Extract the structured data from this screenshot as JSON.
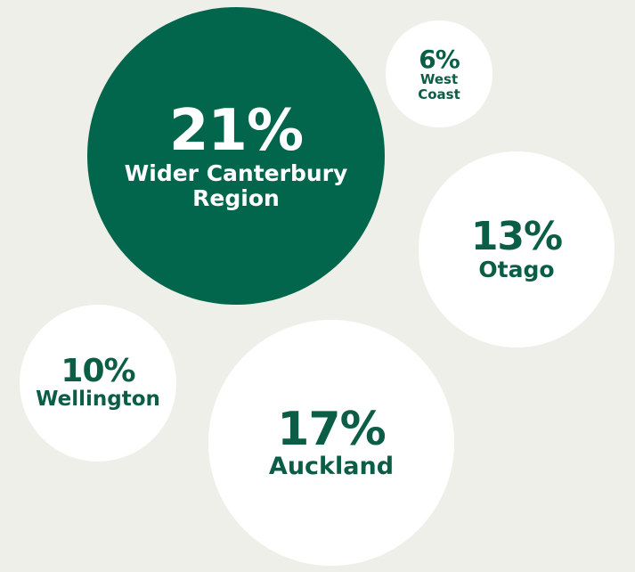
{
  "chart_data": {
    "type": "bubble",
    "categories": [
      "Wider Canterbury Region",
      "West Coast",
      "Otago",
      "Wellington",
      "Auckland"
    ],
    "values": [
      21,
      6,
      13,
      10,
      17
    ],
    "value_labels": [
      "21%",
      "6%",
      "13%",
      "10%",
      "17%"
    ],
    "colors": [
      "#02664d",
      "#ffffff",
      "#ffffff",
      "#ffffff",
      "#ffffff"
    ]
  }
}
